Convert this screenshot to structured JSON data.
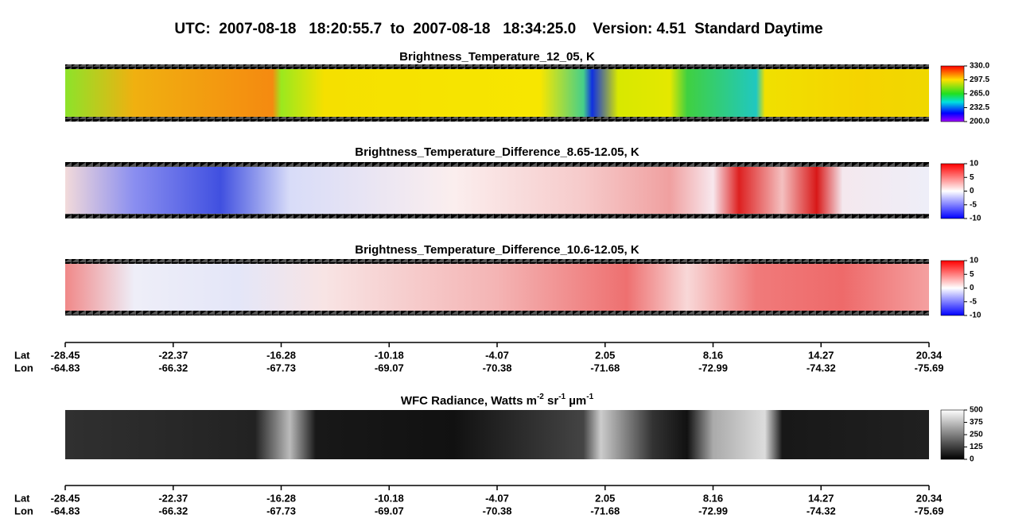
{
  "title": "UTC:  2007-08-18   18:20:55.7  to  2007-08-18   18:34:25.0    Version: 4.51  Standard Daytime",
  "panels": [
    {
      "title": "Brightness_Temperature_12_05, K",
      "clim": [
        200,
        330
      ],
      "colorbar_ticks": [
        {
          "value": 330,
          "label": "330.0"
        },
        297.5,
        {
          "value": 265,
          "label": "265.0"
        },
        232.5,
        {
          "value": 200,
          "label": "200.0"
        }
      ]
    },
    {
      "title": "Brightness_Temperature_Difference_8.65-12.05, K",
      "clim": [
        -10,
        10
      ],
      "colorbar_ticks": [
        10,
        5,
        0,
        -5,
        -10
      ]
    },
    {
      "title": "Brightness_Temperature_Difference_10.6-12.05, K",
      "clim": [
        -10,
        10
      ],
      "colorbar_ticks": [
        10,
        5,
        0,
        -5,
        -10
      ]
    },
    {
      "title_parts": [
        "WFC Radiance, Watts m",
        "-2",
        " sr",
        "-1",
        " µm",
        "-1"
      ],
      "clim": [
        0,
        500
      ],
      "colorbar_ticks": [
        500,
        375,
        250,
        125,
        0
      ]
    }
  ],
  "axes": [
    {
      "lat_label": "Lat",
      "lon_label": "Lon",
      "lat": [
        -28.45,
        -22.37,
        -16.28,
        -10.18,
        -4.07,
        2.05,
        8.16,
        14.27,
        20.34
      ],
      "lon": [
        -64.83,
        -66.32,
        -67.73,
        -69.07,
        -70.38,
        -71.68,
        -72.99,
        -74.32,
        -75.69
      ]
    },
    {
      "lat_label": "Lat",
      "lon_label": "Lon",
      "lat": [
        -28.45,
        -22.37,
        -16.28,
        -10.18,
        -4.07,
        2.05,
        8.16,
        14.27,
        20.34
      ],
      "lon": [
        -64.83,
        -66.32,
        -67.73,
        -69.07,
        -70.38,
        -71.68,
        -72.99,
        -74.32,
        -75.69
      ]
    }
  ]
}
